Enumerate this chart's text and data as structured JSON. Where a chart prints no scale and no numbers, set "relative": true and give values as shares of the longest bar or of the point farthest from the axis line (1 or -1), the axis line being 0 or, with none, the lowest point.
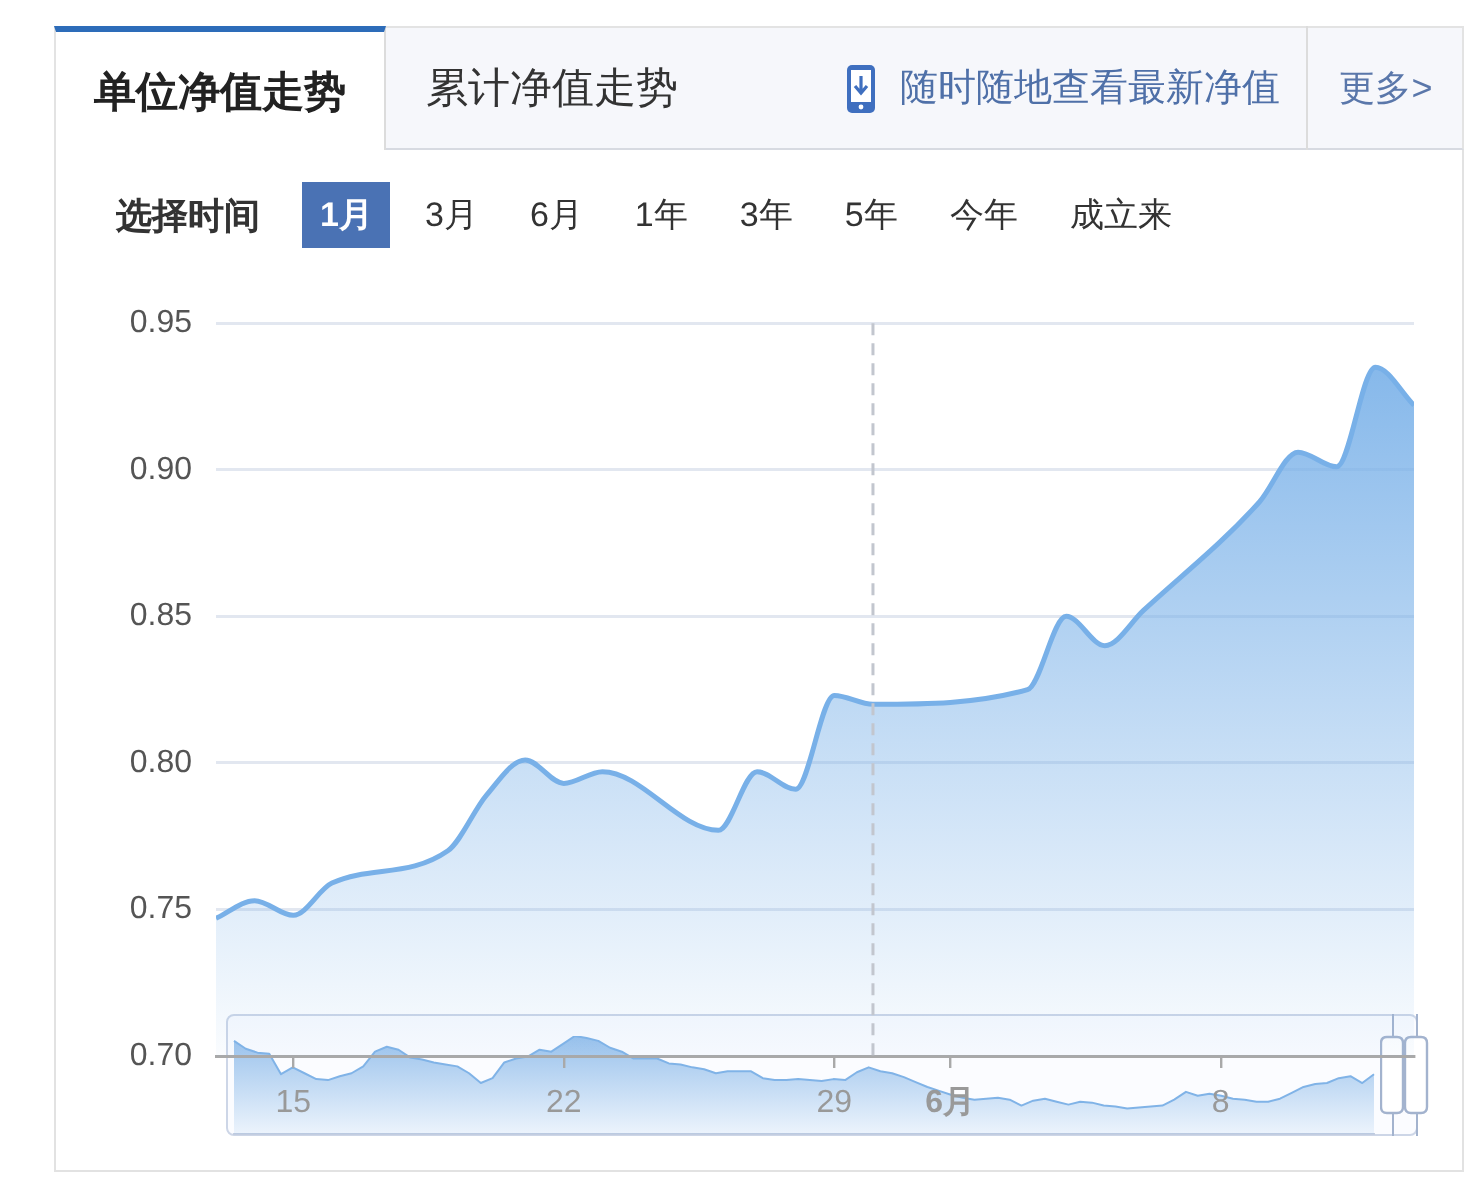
{
  "chart_data": [
    {
      "type": "area",
      "title": "单位净值走势",
      "annotations": [
        "累计净值走势",
        "随时随地查看最新净值",
        "更多>",
        "选择时间",
        "1月",
        "3月",
        "6月",
        "1年",
        "3年",
        "5年",
        "今年",
        "成立来"
      ],
      "x": [
        "--05-13",
        "--05-14",
        "--05-15",
        "--05-16",
        "--05-19",
        "--05-20",
        "--05-21",
        "--05-22",
        "--05-23",
        "--05-26",
        "--05-27",
        "--05-28",
        "--05-29",
        "--05-30",
        "--06-03",
        "--06-04",
        "--06-05",
        "--06-06",
        "--06-09",
        "--06-10",
        "--06-11",
        "--06-12",
        "--06-13"
      ],
      "values": [
        0.747,
        0.753,
        0.748,
        0.759,
        0.77,
        0.789,
        0.801,
        0.793,
        0.797,
        0.777,
        0.797,
        0.791,
        0.823,
        0.82,
        0.825,
        0.85,
        0.84,
        0.852,
        0.889,
        0.906,
        0.901,
        0.935,
        0.922
      ],
      "color": "#78b0e8",
      "xlim": [
        "--05-13",
        "--06-13"
      ],
      "xticks": [
        {
          "value": "--05-15",
          "label": "15"
        },
        {
          "value": "--05-22",
          "label": "22"
        },
        {
          "value": "--05-29",
          "label": "29"
        },
        {
          "value": "--06-01",
          "label": "6月"
        },
        {
          "value": "--06-08",
          "label": "8"
        }
      ],
      "ylim": [
        0.7,
        0.95
      ],
      "yticks": [
        {
          "value": 0.7,
          "label": "0.70"
        },
        0.75,
        {
          "value": 0.8,
          "label": "0.80"
        },
        0.85,
        {
          "value": 0.9,
          "label": "0.90"
        },
        0.95
      ],
      "grid": "y",
      "ref_lines": [
        {
          "axis": "x",
          "value": "--05-30",
          "color": "#c2c6ce",
          "line_style": "dashed"
        }
      ]
    },
    {
      "type": "area",
      "relative": true,
      "color": "#80b3e7",
      "categories": [
        null,
        null,
        null,
        null,
        null,
        null,
        null,
        null,
        null,
        null,
        null,
        null,
        null,
        null,
        null,
        null,
        null,
        null,
        null,
        null,
        null,
        null,
        null,
        null,
        null,
        null,
        null,
        null,
        null,
        null,
        null,
        null,
        null,
        null,
        null,
        null,
        null,
        null,
        null,
        null,
        null,
        null,
        null,
        null,
        null,
        null,
        null,
        null,
        null,
        null,
        null,
        null,
        null,
        null,
        null,
        null,
        null,
        null,
        null,
        null,
        null,
        null,
        null,
        null,
        null,
        null,
        null,
        null,
        null,
        null,
        null,
        null,
        null,
        null,
        null,
        null,
        null,
        null,
        null,
        null,
        null,
        null,
        null,
        null,
        null,
        null,
        null,
        null,
        null,
        null,
        null,
        null,
        null,
        null,
        null,
        null,
        null,
        null
      ],
      "values": [
        0.95,
        0.87,
        0.83,
        0.82,
        0.61,
        0.68,
        0.62,
        0.56,
        0.55,
        0.59,
        0.62,
        0.69,
        0.84,
        0.89,
        0.86,
        0.78,
        0.76,
        0.73,
        0.71,
        0.69,
        0.62,
        0.52,
        0.57,
        0.73,
        0.77,
        0.79,
        0.86,
        0.84,
        0.92,
        1,
        0.98,
        0.95,
        0.88,
        0.84,
        0.77,
        0.77,
        0.77,
        0.72,
        0.71,
        0.68,
        0.66,
        0.62,
        0.64,
        0.64,
        0.64,
        0.57,
        0.55,
        0.55,
        0.56,
        0.55,
        0.54,
        0.56,
        0.55,
        0.63,
        0.68,
        0.64,
        0.62,
        0.58,
        0.53,
        0.48,
        0.44,
        0.4,
        0.37,
        0.35,
        0.36,
        0.37,
        0.35,
        0.29,
        0.34,
        0.36,
        0.33,
        0.3,
        0.33,
        0.32,
        0.29,
        0.28,
        0.26,
        0.27,
        0.28,
        0.29,
        0.35,
        0.43,
        0.39,
        0.41,
        0.39,
        0.36,
        0.35,
        0.33,
        0.33,
        0.36,
        0.42,
        0.48,
        0.51,
        0.52,
        0.57,
        0.59,
        0.52,
        0.61
      ]
    }
  ]
}
